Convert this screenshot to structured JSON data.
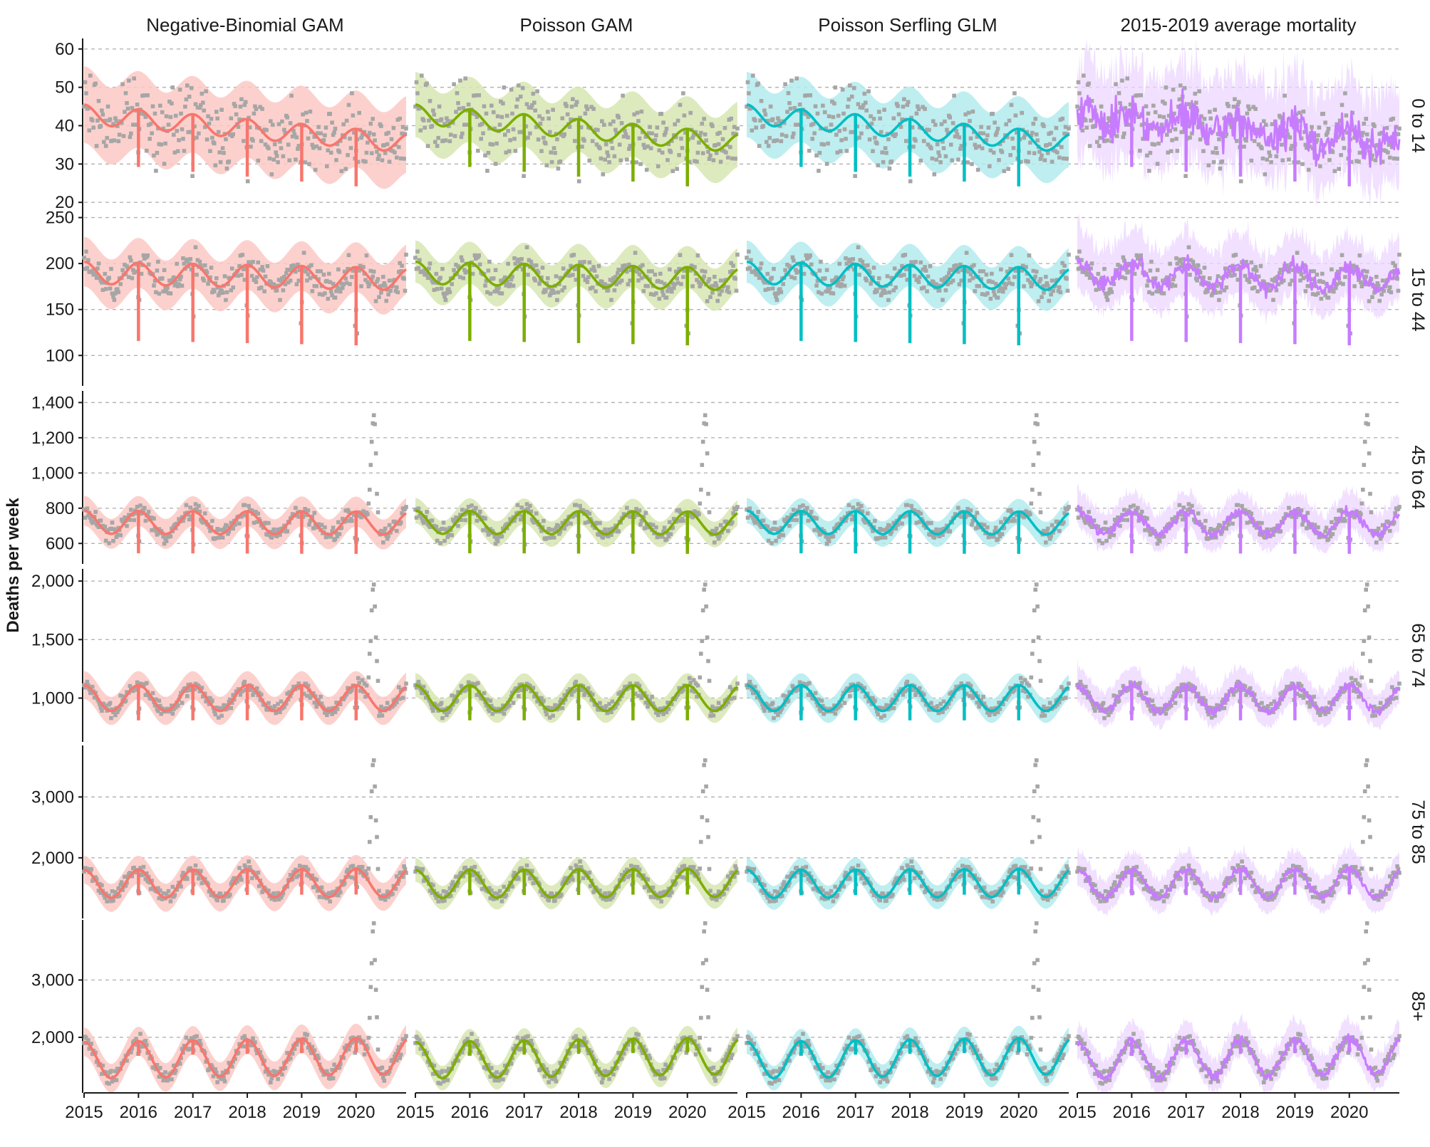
{
  "ylabel": "Deaths per week",
  "colors": {
    "point": "#a6a6a6",
    "models": [
      "#f8766d",
      "#7cae00",
      "#00bfc4",
      "#c77cff"
    ],
    "bands": [
      "#fbc9c4",
      "#d7e6b3",
      "#b3ebed",
      "#ecd6ff"
    ]
  },
  "chart_data": {
    "type": "line",
    "layout": "facet grid (6 age-group rows x 4 model columns)",
    "columns": [
      "Negative-Binomial GAM",
      "Poisson GAM",
      "Poisson Serfling GLM",
      "2015-2019 average mortality"
    ],
    "x_ticks": [
      "2015",
      "2016",
      "2017",
      "2018",
      "2019",
      "2020"
    ],
    "xlim": [
      "2015-01",
      "2020-11"
    ],
    "grid": "horizontal dashed",
    "panels": [
      {
        "row": "0 to 14",
        "ylim": [
          18,
          62
        ],
        "y_ticks": [
          20,
          30,
          40,
          50,
          60
        ],
        "y_tick_labels": [
          "20",
          "30",
          "40",
          "50",
          "60"
        ],
        "baseline": {
          "start": 43,
          "end": 35.5,
          "seasonal_amplitude": 2.5
        },
        "band_halfwidth": 10,
        "observed_spread": 8,
        "spike_dip": 15,
        "late_2020_outbreak": 0
      },
      {
        "row": "15 to 44",
        "ylim": [
          70,
          252
        ],
        "y_ticks": [
          100,
          150,
          200,
          250
        ],
        "y_tick_labels": [
          "100",
          "150",
          "200",
          "250"
        ],
        "baseline": {
          "start": 190,
          "end": 183,
          "seasonal_amplitude": 12
        },
        "band_halfwidth": 27,
        "observed_spread": 16,
        "spike_dip": 85,
        "late_2020_outbreak": 0
      },
      {
        "row": "45 to 64",
        "ylim": [
          500,
          1450
        ],
        "y_ticks": [
          600,
          800,
          1000,
          1200,
          1400
        ],
        "y_tick_labels": [
          "600",
          "800",
          "1,000",
          "1,200",
          "1,400"
        ],
        "baseline": {
          "start": 720,
          "end": 715,
          "seasonal_amplitude": 65
        },
        "band_halfwidth": 85,
        "observed_spread": 45,
        "spike_dip": 240,
        "late_2020_outbreak": 720
      },
      {
        "row": "65 to 74",
        "ylim": [
          650,
          2080
        ],
        "y_ticks": [
          1000,
          1500,
          2000
        ],
        "y_tick_labels": [
          "1,000",
          "1,500",
          "2,000"
        ],
        "baseline": {
          "start": 1000,
          "end": 1000,
          "seasonal_amplitude": 110
        },
        "band_halfwidth": 120,
        "observed_spread": 60,
        "spike_dip": 300,
        "late_2020_outbreak": 1100
      },
      {
        "row": "75 to 85",
        "ylim": [
          1050,
          3800
        ],
        "y_ticks": [
          2000,
          3000
        ],
        "y_tick_labels": [
          "2,000",
          "3,000"
        ],
        "baseline": {
          "start": 1570,
          "end": 1590,
          "seasonal_amplitude": 230
        },
        "band_halfwidth": 230,
        "observed_spread": 100,
        "spike_dip": 420,
        "late_2020_outbreak": 2300
      },
      {
        "row": "85+",
        "ylim": [
          1080,
          4000
        ],
        "y_ticks": [
          2000,
          3000
        ],
        "y_tick_labels": [
          "2,000",
          "3,000"
        ],
        "baseline": {
          "start": 1600,
          "end": 1680,
          "seasonal_amplitude": 320
        },
        "band_halfwidth": 250,
        "observed_spread": 120,
        "spike_dip": 250,
        "late_2020_outbreak": 2500
      }
    ]
  }
}
